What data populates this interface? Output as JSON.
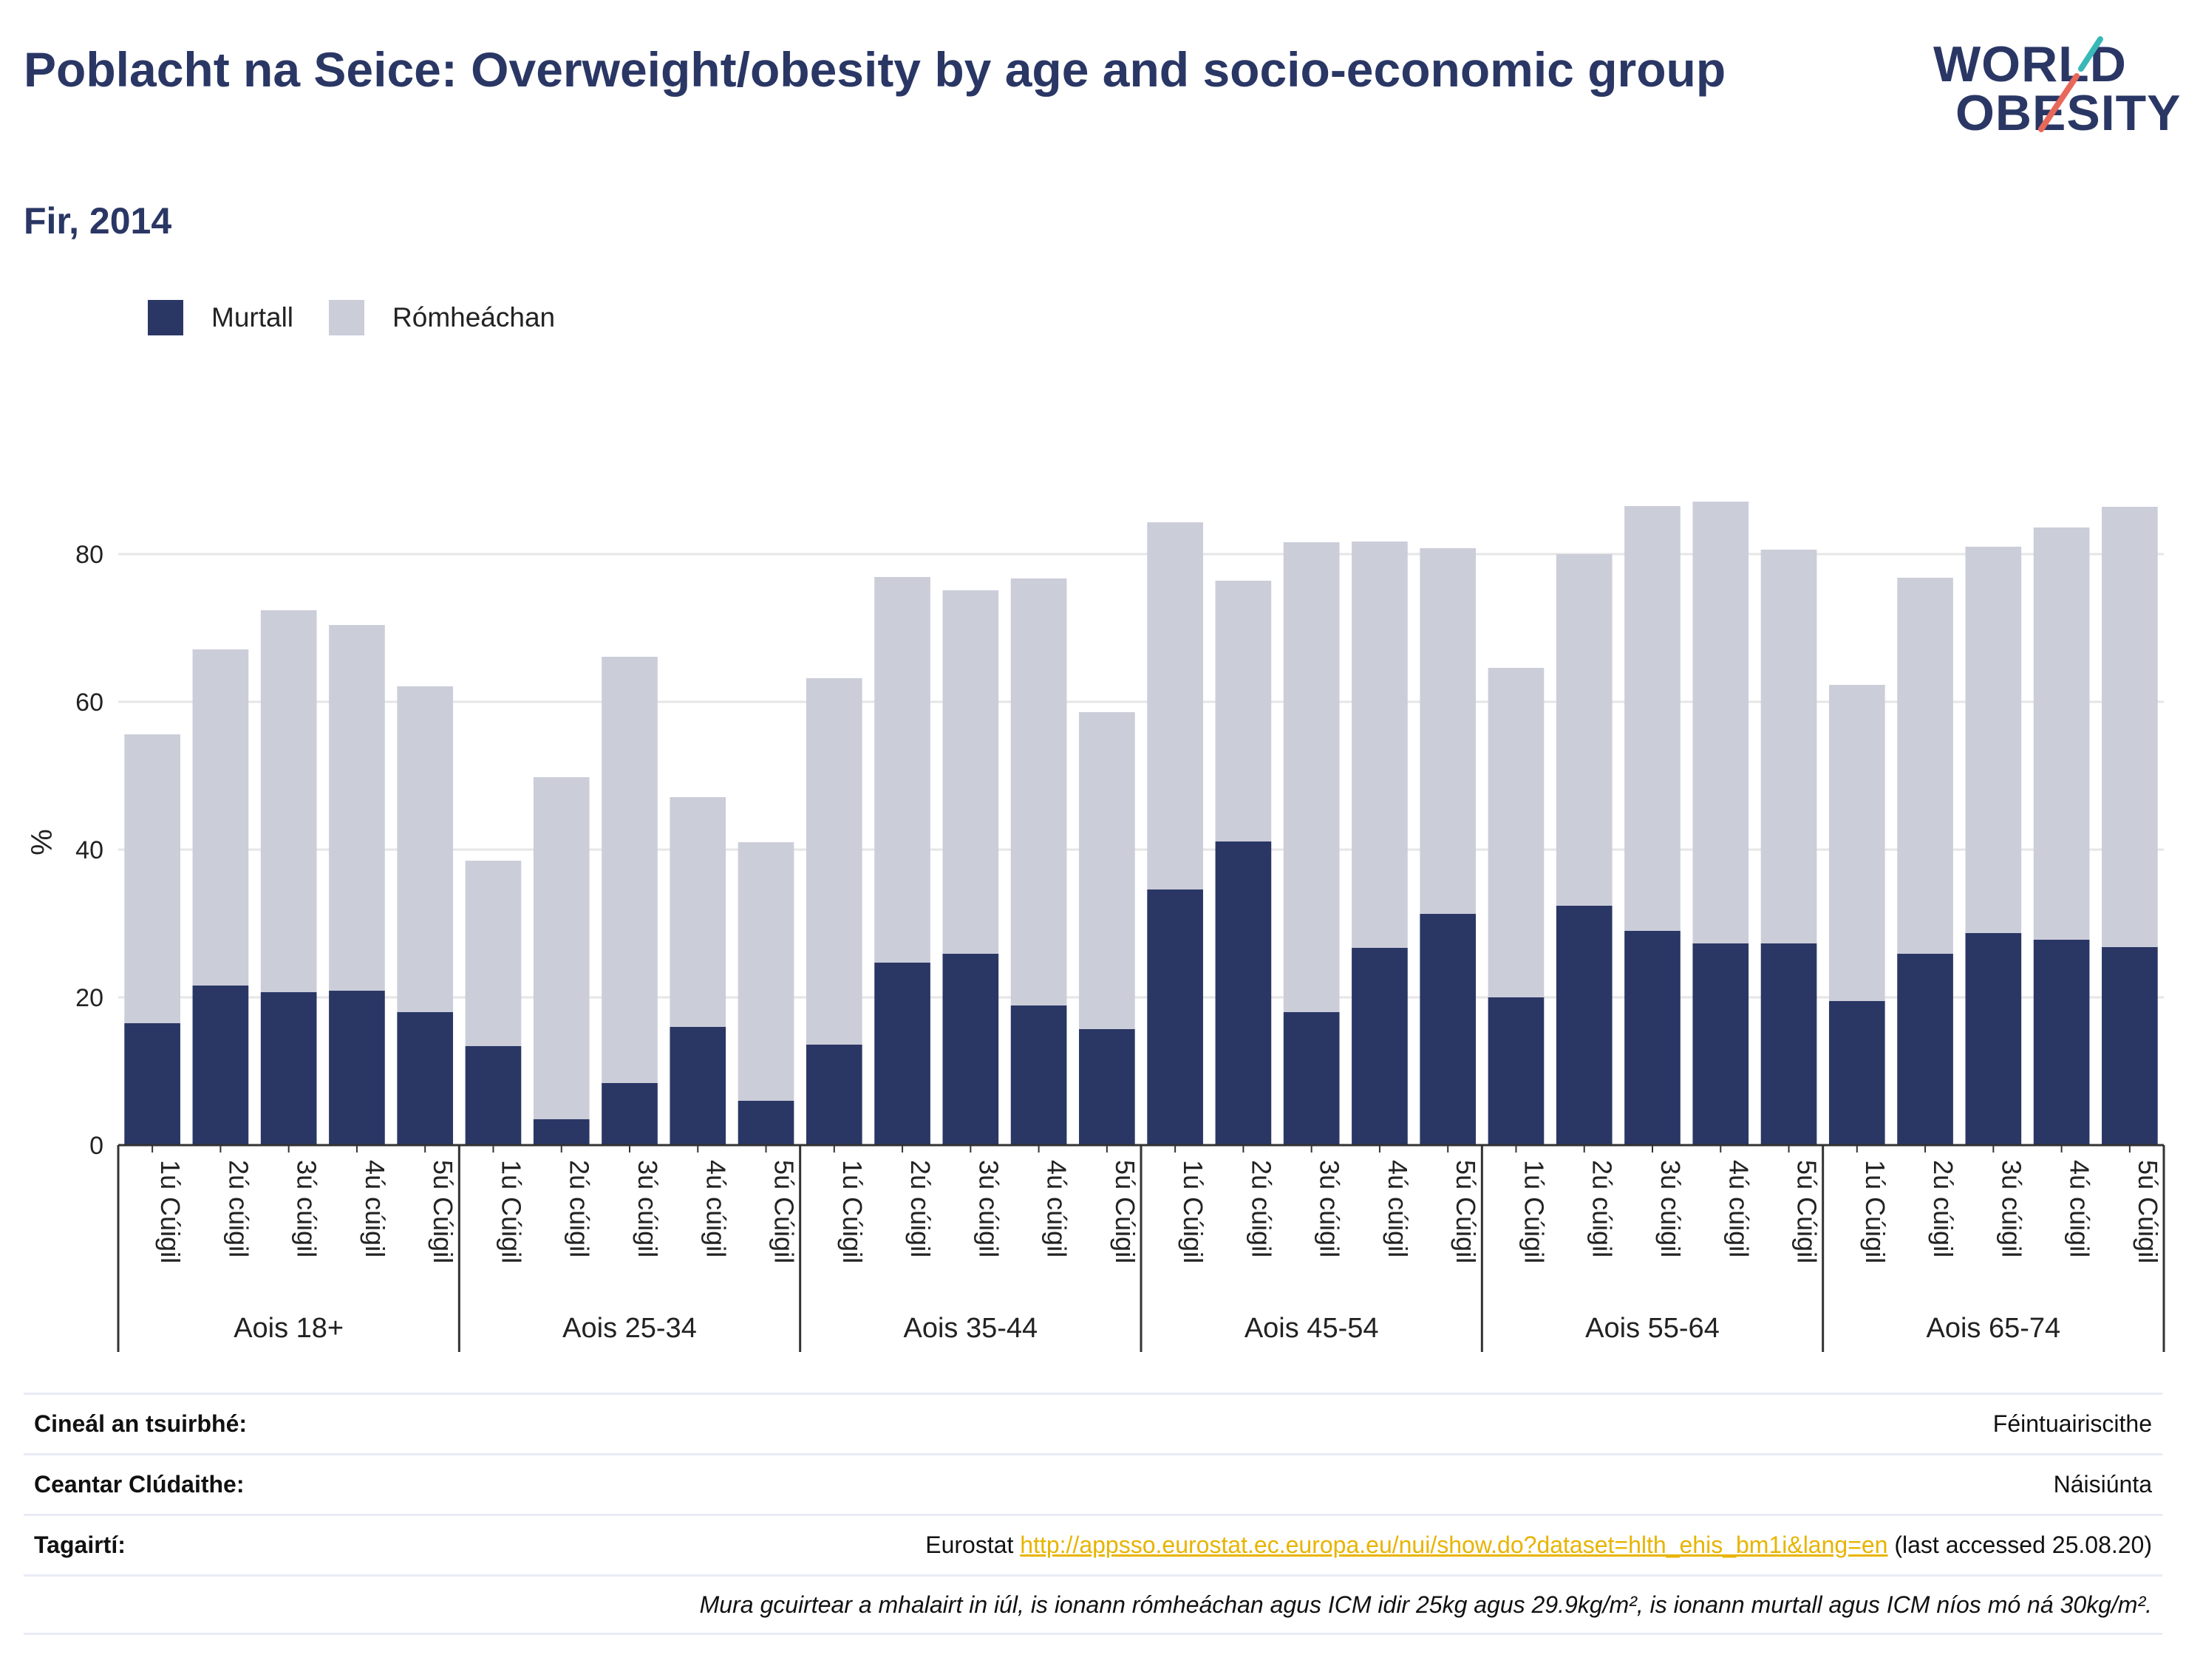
{
  "title": "Poblacht na Seice: Overweight/obesity by age and socio-economic group",
  "subtitle": "Fir, 2014",
  "logo": {
    "line1": "WORLD",
    "line2": "OBESITY"
  },
  "legend": [
    {
      "label": "Murtall",
      "color": "#2a3765"
    },
    {
      "label": "Rómheáchan",
      "color": "#cbcdd9"
    }
  ],
  "info": {
    "survey_type_label": "Cineál an tsuirbhé:",
    "survey_type_value": "Féintuairiscithe",
    "coverage_label": "Ceantar Clúdaithe:",
    "coverage_value": "Náisiúnta",
    "references_label": "Tagairtí:",
    "references_prefix": "Eurostat",
    "references_link": "http://appsso.eurostat.ec.europa.eu/nui/show.do?dataset=hlth_ehis_bm1i&lang=en",
    "references_suffix": "(last accessed 25.08.20)",
    "note": "Mura gcuirtear a mhalairt in iúl, is ionann rómheáchan agus ICM idir 25kg agus 29.9kg/m², is ionann murtall agus ICM níos mó ná 30kg/m²."
  },
  "chart_data": {
    "type": "bar",
    "stacked": true,
    "ylabel": "%",
    "ylim": [
      0,
      90
    ],
    "yticks": [
      0,
      20,
      40,
      60,
      80
    ],
    "grid": true,
    "legend_position": "top-left",
    "groups": [
      {
        "label": "Aois 18+",
        "categories": [
          "1ú Cúigil",
          "2ú cúigil",
          "3ú cúigil",
          "4ú cúigil",
          "5ú Cúigil"
        ],
        "obesity": [
          16.5,
          21.6,
          20.7,
          20.9,
          18.0
        ],
        "total": [
          55.6,
          67.1,
          72.4,
          70.4,
          62.1
        ]
      },
      {
        "label": "Aois 25-34",
        "categories": [
          "1ú Cúigil",
          "2ú cúigil",
          "3ú cúigil",
          "4ú cúigil",
          "5ú Cúigil"
        ],
        "obesity": [
          13.4,
          3.5,
          8.4,
          16.0,
          6.0
        ],
        "total": [
          38.5,
          49.8,
          66.1,
          47.1,
          41.0
        ]
      },
      {
        "label": "Aois 35-44",
        "categories": [
          "1ú Cúigil",
          "2ú cúigil",
          "3ú cúigil",
          "4ú cúigil",
          "5ú Cúigil"
        ],
        "obesity": [
          13.6,
          24.7,
          25.9,
          18.9,
          15.7
        ],
        "total": [
          63.2,
          76.9,
          75.1,
          76.7,
          58.6
        ]
      },
      {
        "label": "Aois 45-54",
        "categories": [
          "1ú Cúigil",
          "2ú cúigil",
          "3ú cúigil",
          "4ú cúigil",
          "5ú Cúigil"
        ],
        "obesity": [
          34.6,
          41.1,
          18.0,
          26.7,
          31.3
        ],
        "total": [
          84.3,
          76.4,
          81.6,
          81.7,
          80.8
        ]
      },
      {
        "label": "Aois 55-64",
        "categories": [
          "1ú Cúigil",
          "2ú cúigil",
          "3ú cúigil",
          "4ú cúigil",
          "5ú Cúigil"
        ],
        "obesity": [
          20.0,
          32.4,
          29.0,
          27.3,
          27.3
        ],
        "total": [
          64.6,
          80.0,
          86.5,
          87.1,
          80.6
        ]
      },
      {
        "label": "Aois 65-74",
        "categories": [
          "1ú Cúigil",
          "2ú cúigil",
          "3ú cúigil",
          "4ú cúigil",
          "5ú Cúigil"
        ],
        "obesity": [
          19.5,
          25.9,
          28.7,
          27.8,
          26.8
        ],
        "total": [
          62.3,
          76.8,
          81.0,
          83.6,
          86.4
        ]
      }
    ]
  }
}
